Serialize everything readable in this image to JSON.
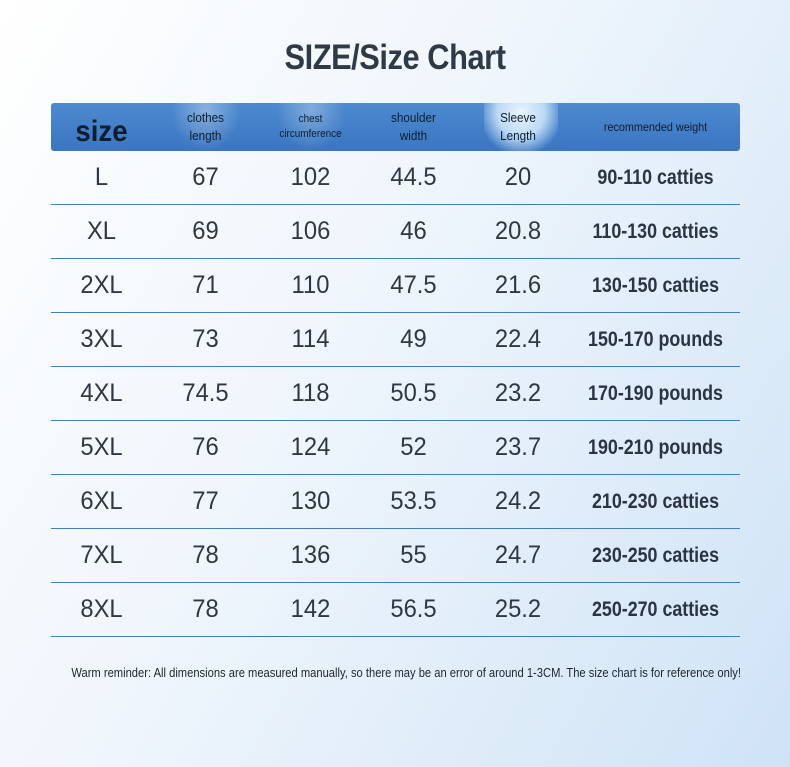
{
  "title": "SIZE/Size Chart",
  "headers": {
    "size": "size",
    "clothes_length_1": "clothes",
    "clothes_length_2": "length",
    "chest_1": "chest",
    "chest_2": "circumference",
    "shoulder_1": "shoulder",
    "shoulder_2": "width",
    "sleeve_1": "Sleeve",
    "sleeve_2": "Length",
    "weight": "recommended weight"
  },
  "rows": [
    {
      "size": "L",
      "length": "67",
      "chest": "102",
      "shoulder": "44.5",
      "sleeve": "20",
      "weight": "90-110 catties"
    },
    {
      "size": "XL",
      "length": "69",
      "chest": "106",
      "shoulder": "46",
      "sleeve": "20.8",
      "weight": "110-130 catties"
    },
    {
      "size": "2XL",
      "length": "71",
      "chest": "110",
      "shoulder": "47.5",
      "sleeve": "21.6",
      "weight": "130-150 catties"
    },
    {
      "size": "3XL",
      "length": "73",
      "chest": "114",
      "shoulder": "49",
      "sleeve": "22.4",
      "weight": "150-170 pounds"
    },
    {
      "size": "4XL",
      "length": "74.5",
      "chest": "118",
      "shoulder": "50.5",
      "sleeve": "23.2",
      "weight": "170-190 pounds"
    },
    {
      "size": "5XL",
      "length": "76",
      "chest": "124",
      "shoulder": "52",
      "sleeve": "23.7",
      "weight": "190-210 pounds"
    },
    {
      "size": "6XL",
      "length": "77",
      "chest": "130",
      "shoulder": "53.5",
      "sleeve": "24.2",
      "weight": "210-230 catties"
    },
    {
      "size": "7XL",
      "length": "78",
      "chest": "136",
      "shoulder": "55",
      "sleeve": "24.7",
      "weight": "230-250 catties"
    },
    {
      "size": "8XL",
      "length": "78",
      "chest": "142",
      "shoulder": "56.5",
      "sleeve": "25.2",
      "weight": "250-270 catties"
    }
  ],
  "note": "Warm reminder: All dimensions are measured manually, so there may be an error of around 1-3CM. The size chart is for reference only!",
  "colors": {
    "header_bg": "#3a76c1",
    "row_divider": "#3f7fc0",
    "text": "#2f3742"
  }
}
